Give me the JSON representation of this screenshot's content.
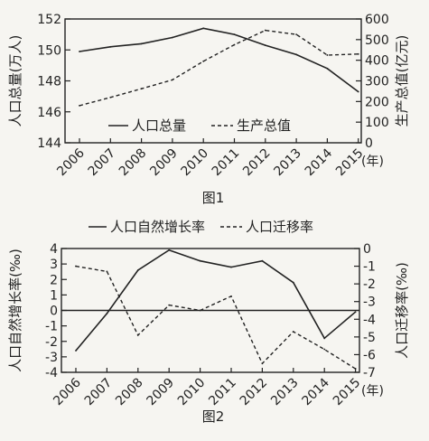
{
  "chart_data": [
    {
      "type": "line",
      "caption": "图1",
      "x_unit": "(年)",
      "categories": [
        "2006",
        "2007",
        "2008",
        "2009",
        "2010",
        "2011",
        "2012",
        "2013",
        "2014",
        "2015"
      ],
      "y_left": {
        "label": "人口总量(万人)",
        "ticks": [
          "144",
          "146",
          "148",
          "150",
          "152"
        ],
        "range": [
          144,
          152
        ]
      },
      "y_right": {
        "label": "生产总值(亿元)",
        "ticks": [
          "0",
          "100",
          "200",
          "300",
          "400",
          "500",
          "600"
        ],
        "range": [
          0,
          600
        ]
      },
      "series": [
        {
          "name": "人口总量",
          "axis": "left",
          "style": "solid",
          "values": [
            149.9,
            150.2,
            150.4,
            150.8,
            151.4,
            151.0,
            150.3,
            149.7,
            148.8,
            147.3
          ]
        },
        {
          "name": "生产总值",
          "axis": "right",
          "style": "dashed",
          "values": [
            180,
            220,
            262,
            305,
            395,
            475,
            545,
            525,
            425,
            430
          ]
        }
      ],
      "legend": "bottom-left"
    },
    {
      "type": "line",
      "caption": "图2",
      "x_unit": "(年)",
      "categories": [
        "2006",
        "2007",
        "2008",
        "2009",
        "2010",
        "2011",
        "2012",
        "2013",
        "2014",
        "2015"
      ],
      "y_left": {
        "label": "人口自然增长率(‰)",
        "ticks": [
          "-4",
          "-3",
          "-2",
          "-1",
          "0",
          "1",
          "2",
          "3",
          "4"
        ],
        "range": [
          -4,
          4
        ]
      },
      "y_right": {
        "label": "人口迁移率(‰)",
        "ticks": [
          "-7",
          "-6",
          "-5",
          "-4",
          "-3",
          "-2",
          "-1",
          "0"
        ],
        "range": [
          -7,
          0
        ]
      },
      "series": [
        {
          "name": "人口自然增长率",
          "axis": "left",
          "style": "solid",
          "values": [
            -2.6,
            -0.2,
            2.6,
            3.9,
            3.2,
            2.8,
            3.2,
            1.8,
            -1.8,
            -0.1
          ]
        },
        {
          "name": "人口迁移率",
          "axis": "right",
          "style": "dashed",
          "values": [
            -1.0,
            -1.3,
            -4.9,
            -3.2,
            -3.5,
            -2.7,
            -6.5,
            -4.7,
            -5.7,
            -6.8
          ]
        }
      ],
      "legend": "top"
    }
  ]
}
